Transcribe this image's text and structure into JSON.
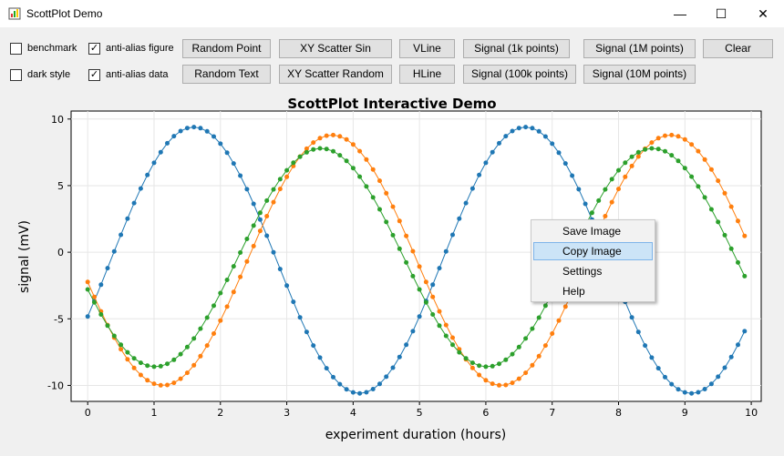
{
  "window": {
    "title": "ScottPlot Demo",
    "minimize_glyph": "—",
    "maximize_glyph": "☐",
    "close_glyph": "✕"
  },
  "options": [
    {
      "label": "benchmark",
      "checked": false
    },
    {
      "label": "anti-alias figure",
      "checked": true
    },
    {
      "label": "dark style",
      "checked": false
    },
    {
      "label": "anti-alias data",
      "checked": true
    }
  ],
  "buttons": {
    "random_point": "Random Point",
    "random_text": "Random Text",
    "xy_scatter_sin": "XY Scatter Sin",
    "xy_scatter_random": "XY Scatter Random",
    "vline": "VLine",
    "hline": "HLine",
    "signal_1k": "Signal (1k points)",
    "signal_100k": "Signal (100k points)",
    "signal_1m": "Signal (1M points)",
    "signal_10m": "Signal (10M points)",
    "clear": "Clear"
  },
  "context_menu": {
    "items": [
      "Save Image",
      "Copy Image",
      "Settings",
      "Help"
    ],
    "highlighted": "Copy Image"
  },
  "chart_data": {
    "type": "line",
    "title": "ScottPlot Interactive Demo",
    "xlabel": "experiment duration (hours)",
    "ylabel": "signal (mV)",
    "xlim": [
      -0.25,
      10.15
    ],
    "ylim": [
      -11.2,
      10.6
    ],
    "xticks": [
      0,
      1,
      2,
      3,
      4,
      5,
      6,
      7,
      8,
      9,
      10
    ],
    "yticks": [
      10,
      5,
      0,
      -5,
      -10
    ],
    "grid": true,
    "x": {
      "start": 0,
      "step": 0.1,
      "count": 100
    },
    "series": [
      {
        "color": "#1f77b4",
        "amplitude": 10.0,
        "period_hours": 5.0,
        "phase_deg": -25,
        "offset": -0.6
      },
      {
        "color": "#ff7f0e",
        "amplitude": 9.4,
        "period_hours": 5.1,
        "phase_deg": 190,
        "offset": -0.6
      },
      {
        "color": "#2ca02c",
        "amplitude": 8.2,
        "period_hours": 5.0,
        "phase_deg": 197,
        "offset": -0.4
      }
    ]
  },
  "colors": {
    "accent_selection": "#cce4f7",
    "grid": "#e6e6e6"
  }
}
